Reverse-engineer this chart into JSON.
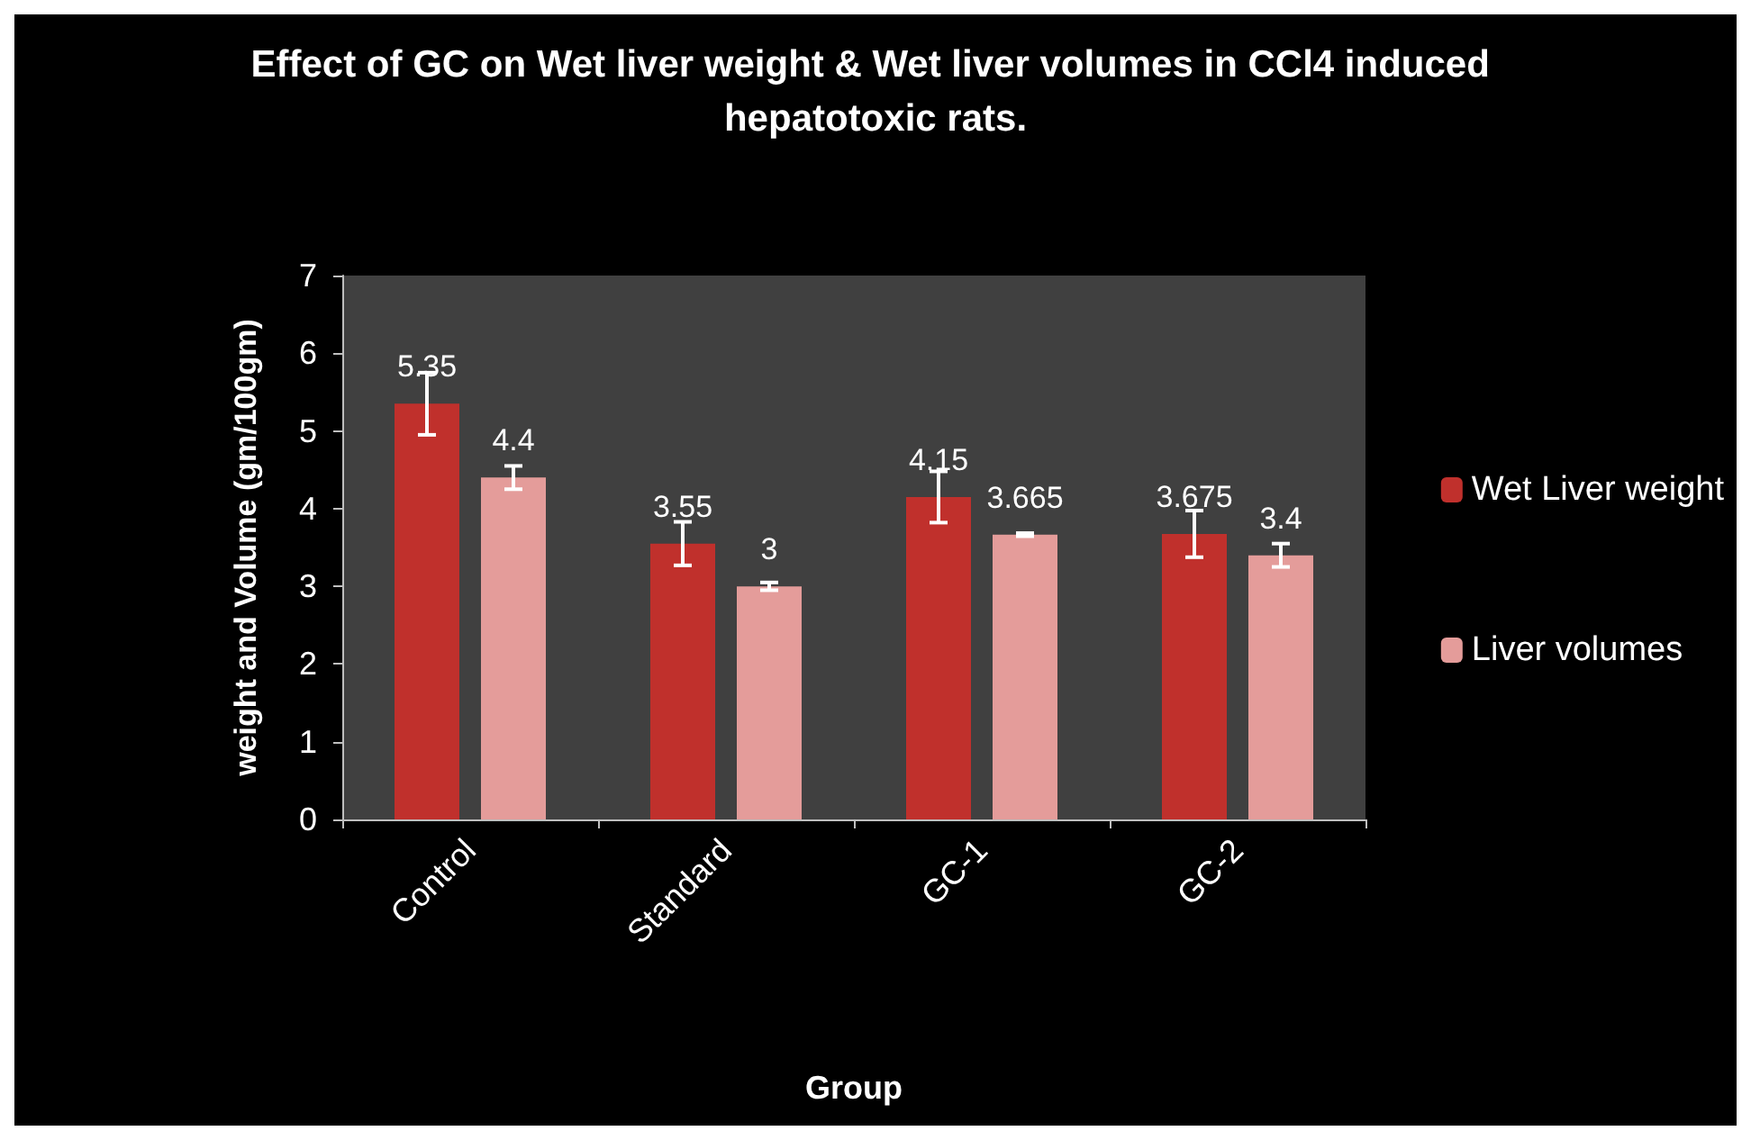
{
  "chart_data": {
    "type": "bar",
    "title": "Effect of GC on Wet liver weight & Wet liver volumes in CCl4 induced hepatotoxic rats.",
    "xlabel": "Group",
    "ylabel": "weight and Volume (gm/100gm)",
    "categories": [
      "Control",
      "Standard",
      "GC-1",
      "GC-2"
    ],
    "series": [
      {
        "name": "Wet Liver weight",
        "color": "#c0302c",
        "values": [
          5.35,
          3.55,
          4.15,
          3.675
        ],
        "errors": [
          0.4,
          0.28,
          0.33,
          0.3
        ]
      },
      {
        "name": "Liver volumes",
        "color": "#e49c9a",
        "values": [
          4.4,
          3,
          3.665,
          3.4
        ],
        "errors": [
          0.15,
          0.05,
          0.02,
          0.15
        ]
      }
    ],
    "ylim": [
      0,
      7
    ],
    "yticks": [
      0,
      1,
      2,
      3,
      4,
      5,
      6,
      7
    ],
    "grid": false,
    "legend": "right",
    "data_labels": true
  }
}
